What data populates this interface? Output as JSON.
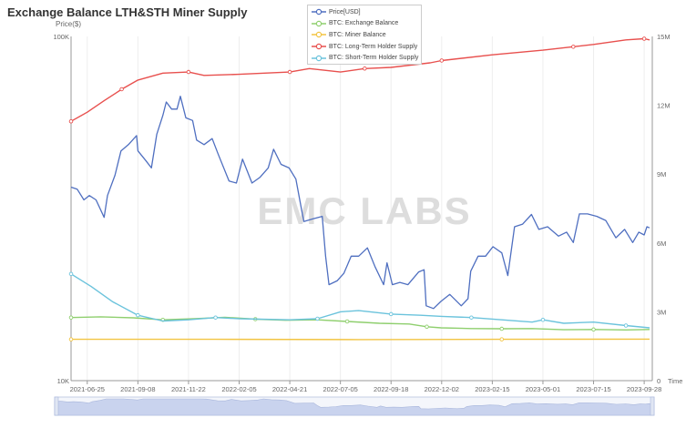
{
  "page": {
    "title": "Exchange Balance LTH&STH Miner Supply",
    "y_left_title": "Price($)",
    "watermark": "EMC LABS"
  },
  "legend": {
    "items": [
      {
        "label": "Price[USD]",
        "color": "#4f6fc0"
      },
      {
        "label": "BTC: Exchange Balance",
        "color": "#8fcf6e"
      },
      {
        "label": "BTC: Miner Balance",
        "color": "#f2c442"
      },
      {
        "label": "BTC: Long-Term Holder Supply",
        "color": "#e8504e"
      },
      {
        "label": "BTC: Short-Term Holder Supply",
        "color": "#6bc3dc"
      }
    ]
  },
  "colors": {
    "axis": "#999999",
    "text": "#666666",
    "grid": "#eeeeee",
    "zoom_bg": "#f4f6fb",
    "zoom_fill": "#c9d3ee",
    "zoom_border": "#c5cfe6"
  },
  "chart_data": {
    "type": "line",
    "title": "Exchange Balance LTH&STH Miner Supply",
    "x_axis": {
      "type": "date",
      "range": [
        "2021-06-01",
        "2023-10-10"
      ],
      "tick_labels": [
        "2021-06-25",
        "2021-09-08",
        "2021-11-22",
        "2022-02-05",
        "2022-04-21",
        "2022-07-05",
        "2022-09-18",
        "2022-12-02",
        "2023-02-15",
        "2023-05-01",
        "2023-07-15",
        "2023-09-28"
      ],
      "end_label": "Time"
    },
    "y_axis_left": {
      "label": "Price($)",
      "scale": "log",
      "range": [
        10000,
        100000
      ],
      "tick_labels": [
        "100K",
        "10K"
      ]
    },
    "y_axis_right": {
      "scale": "linear",
      "range": [
        0,
        15000000
      ],
      "tick_labels": [
        "0",
        "3M",
        "6M",
        "9M",
        "12M",
        "15M"
      ]
    },
    "legend_position": "top-center",
    "series": [
      {
        "name": "Price[USD]",
        "axis": "left",
        "points": [
          [
            "2021-06-01",
            36500
          ],
          [
            "2021-06-10",
            36000
          ],
          [
            "2021-06-20",
            33500
          ],
          [
            "2021-06-28",
            34500
          ],
          [
            "2021-07-08",
            33500
          ],
          [
            "2021-07-20",
            29800
          ],
          [
            "2021-07-25",
            34500
          ],
          [
            "2021-08-05",
            39500
          ],
          [
            "2021-08-14",
            46500
          ],
          [
            "2021-08-25",
            48500
          ],
          [
            "2021-09-06",
            51500
          ],
          [
            "2021-09-08",
            46500
          ],
          [
            "2021-09-20",
            43500
          ],
          [
            "2021-09-28",
            41500
          ],
          [
            "2021-10-06",
            52000
          ],
          [
            "2021-10-15",
            59000
          ],
          [
            "2021-10-20",
            64500
          ],
          [
            "2021-10-28",
            61500
          ],
          [
            "2021-11-05",
            61500
          ],
          [
            "2021-11-10",
            67000
          ],
          [
            "2021-11-18",
            58000
          ],
          [
            "2021-11-28",
            57000
          ],
          [
            "2021-12-04",
            50000
          ],
          [
            "2021-12-15",
            48500
          ],
          [
            "2021-12-27",
            50500
          ],
          [
            "2022-01-05",
            45500
          ],
          [
            "2022-01-21",
            38000
          ],
          [
            "2022-02-01",
            37500
          ],
          [
            "2022-02-10",
            44000
          ],
          [
            "2022-02-24",
            37500
          ],
          [
            "2022-03-08",
            39000
          ],
          [
            "2022-03-20",
            41500
          ],
          [
            "2022-03-28",
            47000
          ],
          [
            "2022-04-08",
            42500
          ],
          [
            "2022-04-20",
            41500
          ],
          [
            "2022-04-30",
            38500
          ],
          [
            "2022-05-09",
            31000
          ],
          [
            "2022-05-12",
            29000
          ],
          [
            "2022-05-25",
            29500
          ],
          [
            "2022-06-08",
            30000
          ],
          [
            "2022-06-13",
            23000
          ],
          [
            "2022-06-18",
            19000
          ],
          [
            "2022-06-30",
            19500
          ],
          [
            "2022-07-10",
            20500
          ],
          [
            "2022-07-21",
            23000
          ],
          [
            "2022-08-01",
            23000
          ],
          [
            "2022-08-14",
            24300
          ],
          [
            "2022-08-25",
            21500
          ],
          [
            "2022-09-07",
            19000
          ],
          [
            "2022-09-12",
            22000
          ],
          [
            "2022-09-20",
            19000
          ],
          [
            "2022-10-01",
            19300
          ],
          [
            "2022-10-13",
            19000
          ],
          [
            "2022-10-29",
            20700
          ],
          [
            "2022-11-06",
            21000
          ],
          [
            "2022-11-09",
            16500
          ],
          [
            "2022-11-20",
            16200
          ],
          [
            "2022-12-01",
            17000
          ],
          [
            "2022-12-14",
            17800
          ],
          [
            "2022-12-31",
            16500
          ],
          [
            "2023-01-10",
            17300
          ],
          [
            "2023-01-14",
            20800
          ],
          [
            "2023-01-25",
            23000
          ],
          [
            "2023-02-05",
            23000
          ],
          [
            "2023-02-16",
            24500
          ],
          [
            "2023-03-01",
            23500
          ],
          [
            "2023-03-10",
            20200
          ],
          [
            "2023-03-20",
            28000
          ],
          [
            "2023-04-01",
            28500
          ],
          [
            "2023-04-14",
            30400
          ],
          [
            "2023-04-25",
            27500
          ],
          [
            "2023-05-08",
            28000
          ],
          [
            "2023-05-24",
            26300
          ],
          [
            "2023-06-05",
            27000
          ],
          [
            "2023-06-15",
            25200
          ],
          [
            "2023-06-24",
            30500
          ],
          [
            "2023-07-06",
            30500
          ],
          [
            "2023-07-20",
            30000
          ],
          [
            "2023-08-02",
            29200
          ],
          [
            "2023-08-17",
            26000
          ],
          [
            "2023-08-30",
            27500
          ],
          [
            "2023-09-11",
            25200
          ],
          [
            "2023-09-20",
            27000
          ],
          [
            "2023-09-28",
            26500
          ],
          [
            "2023-10-02",
            28000
          ],
          [
            "2023-10-06",
            27800
          ]
        ]
      },
      {
        "name": "BTC: Exchange Balance",
        "axis": "right",
        "points": [
          [
            "2021-06-01",
            2750000
          ],
          [
            "2021-07-15",
            2780000
          ],
          [
            "2021-09-01",
            2740000
          ],
          [
            "2021-10-15",
            2650000
          ],
          [
            "2021-12-01",
            2700000
          ],
          [
            "2022-01-15",
            2760000
          ],
          [
            "2022-03-01",
            2680000
          ],
          [
            "2022-04-15",
            2630000
          ],
          [
            "2022-06-01",
            2650000
          ],
          [
            "2022-07-15",
            2580000
          ],
          [
            "2022-09-01",
            2500000
          ],
          [
            "2022-10-15",
            2470000
          ],
          [
            "2022-11-10",
            2350000
          ],
          [
            "2022-12-01",
            2300000
          ],
          [
            "2023-01-15",
            2270000
          ],
          [
            "2023-03-01",
            2260000
          ],
          [
            "2023-04-15",
            2270000
          ],
          [
            "2023-06-01",
            2220000
          ],
          [
            "2023-07-15",
            2230000
          ],
          [
            "2023-09-01",
            2210000
          ],
          [
            "2023-10-06",
            2230000
          ]
        ]
      },
      {
        "name": "BTC: Miner Balance",
        "axis": "right",
        "points": [
          [
            "2021-06-01",
            1800000
          ],
          [
            "2022-01-01",
            1800000
          ],
          [
            "2022-08-01",
            1790000
          ],
          [
            "2023-03-01",
            1800000
          ],
          [
            "2023-10-06",
            1810000
          ]
        ]
      },
      {
        "name": "BTC: Long-Term Holder Supply",
        "axis": "right",
        "points": [
          [
            "2021-06-01",
            11300000
          ],
          [
            "2021-06-25",
            11700000
          ],
          [
            "2021-07-20",
            12200000
          ],
          [
            "2021-08-15",
            12700000
          ],
          [
            "2021-09-08",
            13100000
          ],
          [
            "2021-10-15",
            13400000
          ],
          [
            "2021-11-22",
            13450000
          ],
          [
            "2021-12-15",
            13300000
          ],
          [
            "2022-02-05",
            13350000
          ],
          [
            "2022-04-21",
            13450000
          ],
          [
            "2022-05-20",
            13600000
          ],
          [
            "2022-07-05",
            13450000
          ],
          [
            "2022-08-10",
            13600000
          ],
          [
            "2022-09-18",
            13650000
          ],
          [
            "2022-11-15",
            13850000
          ],
          [
            "2022-12-02",
            13950000
          ],
          [
            "2023-02-15",
            14200000
          ],
          [
            "2023-05-01",
            14400000
          ],
          [
            "2023-06-15",
            14550000
          ],
          [
            "2023-07-15",
            14650000
          ],
          [
            "2023-09-01",
            14850000
          ],
          [
            "2023-09-28",
            14900000
          ],
          [
            "2023-10-06",
            14850000
          ]
        ]
      },
      {
        "name": "BTC: Short-Term Holder Supply",
        "axis": "right",
        "points": [
          [
            "2021-06-01",
            4650000
          ],
          [
            "2021-07-01",
            4100000
          ],
          [
            "2021-08-01",
            3450000
          ],
          [
            "2021-09-08",
            2850000
          ],
          [
            "2021-10-15",
            2600000
          ],
          [
            "2021-11-22",
            2650000
          ],
          [
            "2022-01-01",
            2750000
          ],
          [
            "2022-02-05",
            2700000
          ],
          [
            "2022-04-21",
            2650000
          ],
          [
            "2022-06-01",
            2700000
          ],
          [
            "2022-07-05",
            3000000
          ],
          [
            "2022-08-01",
            3050000
          ],
          [
            "2022-09-18",
            2900000
          ],
          [
            "2022-11-01",
            2850000
          ],
          [
            "2022-12-02",
            2800000
          ],
          [
            "2023-01-15",
            2750000
          ],
          [
            "2023-03-01",
            2650000
          ],
          [
            "2023-04-15",
            2550000
          ],
          [
            "2023-05-01",
            2650000
          ],
          [
            "2023-06-01",
            2500000
          ],
          [
            "2023-07-15",
            2550000
          ],
          [
            "2023-09-01",
            2400000
          ],
          [
            "2023-10-06",
            2300000
          ]
        ]
      }
    ]
  }
}
